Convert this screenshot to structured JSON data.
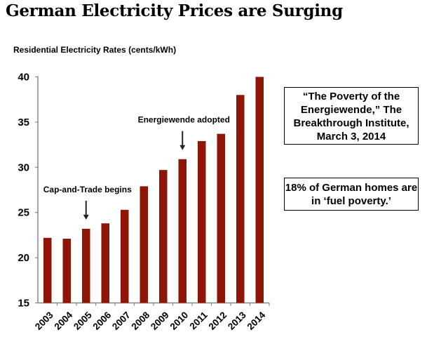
{
  "chart_data": {
    "type": "bar",
    "title": "German Electricity Prices are Surging",
    "ylabel": "Residential Electricity Rates (cents/kWh)",
    "xlabel": "",
    "categories": [
      "2003",
      "2004",
      "2005",
      "2006",
      "2007",
      "2008",
      "2009",
      "2010",
      "2011",
      "2012",
      "2013",
      "2014"
    ],
    "values": [
      22.2,
      22.1,
      23.2,
      23.8,
      25.3,
      27.9,
      29.7,
      30.9,
      32.9,
      33.7,
      38.0,
      40.0
    ],
    "ylim": [
      15,
      40
    ],
    "yticks": [
      15,
      20,
      25,
      30,
      35,
      40
    ],
    "grid": false,
    "bar_color": "#8f1506",
    "annotations": [
      {
        "text": "Cap-and-Trade begins",
        "category": "2005"
      },
      {
        "text": "Energiewende adopted",
        "category": "2010"
      }
    ],
    "callouts": [
      "“The Poverty of the Energiewende,” The Breakthrough Institute, March 3, 2014",
      "18% of German homes are in ‘fuel poverty.’"
    ]
  }
}
